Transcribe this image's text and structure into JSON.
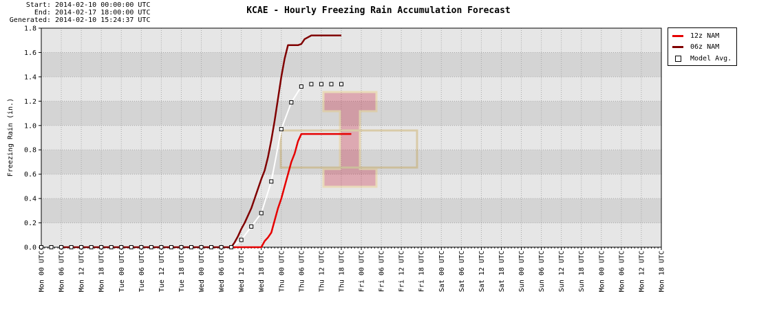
{
  "meta": {
    "start_key": "Start:",
    "start_val": "2014-02-10 00:00:00 UTC",
    "end_key": "End:",
    "end_val": "2014-02-17 18:00:00 UTC",
    "gen_key": "Generated:",
    "gen_val": "2014-02-10 15:24:37 UTC"
  },
  "colors": {
    "nam12z": "#e60000",
    "nam06z": "#800000",
    "avg": "#ffffff",
    "band_light": "#e6e6e6",
    "band_dark": "#d4d4d4"
  },
  "chart_data": {
    "type": "line",
    "title": "KCAE - Hourly Freezing Rain Accumulation Forecast",
    "ylabel": "Freezing Rain (in.)",
    "xlabel": "",
    "ylim": [
      0,
      1.8
    ],
    "yticks": [
      "0.0",
      "0.2",
      "0.4",
      "0.6",
      "0.8",
      "1.0",
      "1.2",
      "1.4",
      "1.6",
      "1.8"
    ],
    "xlim_hours": [
      0,
      186
    ],
    "xticks": [
      "Mon 00 UTC",
      "Mon 06 UTC",
      "Mon 12 UTC",
      "Mon 18 UTC",
      "Tue 00 UTC",
      "Tue 06 UTC",
      "Tue 12 UTC",
      "Tue 18 UTC",
      "Wed 00 UTC",
      "Wed 06 UTC",
      "Wed 12 UTC",
      "Wed 18 UTC",
      "Thu 00 UTC",
      "Thu 06 UTC",
      "Thu 12 UTC",
      "Thu 18 UTC",
      "Fri 00 UTC",
      "Fri 06 UTC",
      "Fri 12 UTC",
      "Fri 18 UTC",
      "Sat 00 UTC",
      "Sat 06 UTC",
      "Sat 12 UTC",
      "Sat 18 UTC",
      "Sun 00 UTC",
      "Sun 06 UTC",
      "Sun 12 UTC",
      "Sun 18 UTC",
      "Mon 00 UTC",
      "Mon 06 UTC",
      "Mon 12 UTC",
      "Mon 18 UTC"
    ],
    "grid": true,
    "legend_position": "outside-right-top",
    "series": [
      {
        "name": "12z NAM",
        "style": "line",
        "color": "#e60000",
        "points": [
          [
            57,
            0.0
          ],
          [
            66,
            0.0
          ],
          [
            67,
            0.05
          ],
          [
            68,
            0.08
          ],
          [
            69,
            0.12
          ],
          [
            70,
            0.22
          ],
          [
            71,
            0.32
          ],
          [
            72,
            0.4
          ],
          [
            73,
            0.5
          ],
          [
            74,
            0.6
          ],
          [
            75,
            0.7
          ],
          [
            76,
            0.77
          ],
          [
            77,
            0.87
          ],
          [
            78,
            0.93
          ],
          [
            79,
            0.93
          ],
          [
            80,
            0.93
          ],
          [
            81,
            0.93
          ],
          [
            84,
            0.93
          ],
          [
            87,
            0.93
          ],
          [
            90,
            0.93
          ],
          [
            93,
            0.93
          ]
        ]
      },
      {
        "name": "06z NAM",
        "style": "line",
        "color": "#800000",
        "points": [
          [
            6,
            0.0
          ],
          [
            12,
            0.0
          ],
          [
            57,
            0.0
          ],
          [
            58,
            0.04
          ],
          [
            59,
            0.09
          ],
          [
            60,
            0.15
          ],
          [
            61,
            0.2
          ],
          [
            62,
            0.26
          ],
          [
            63,
            0.32
          ],
          [
            64,
            0.4
          ],
          [
            65,
            0.48
          ],
          [
            66,
            0.56
          ],
          [
            67,
            0.63
          ],
          [
            68,
            0.74
          ],
          [
            69,
            0.88
          ],
          [
            70,
            1.04
          ],
          [
            71,
            1.22
          ],
          [
            72,
            1.4
          ],
          [
            73,
            1.55
          ],
          [
            74,
            1.66
          ],
          [
            75,
            1.66
          ],
          [
            76,
            1.66
          ],
          [
            77,
            1.66
          ],
          [
            78,
            1.67
          ],
          [
            79,
            1.71
          ],
          [
            81,
            1.74
          ],
          [
            84,
            1.74
          ],
          [
            87,
            1.74
          ],
          [
            90,
            1.74
          ]
        ]
      },
      {
        "name": "Model Avg.",
        "style": "markers",
        "color": "#ffffff",
        "points": [
          [
            0,
            0.0
          ],
          [
            3,
            0.0
          ],
          [
            6,
            0.0
          ],
          [
            9,
            0.0
          ],
          [
            12,
            0.0
          ],
          [
            15,
            0.0
          ],
          [
            18,
            0.0
          ],
          [
            21,
            0.0
          ],
          [
            24,
            0.0
          ],
          [
            27,
            0.0
          ],
          [
            30,
            0.0
          ],
          [
            33,
            0.0
          ],
          [
            36,
            0.0
          ],
          [
            39,
            0.0
          ],
          [
            42,
            0.0
          ],
          [
            45,
            0.0
          ],
          [
            48,
            0.0
          ],
          [
            51,
            0.0
          ],
          [
            54,
            0.0
          ],
          [
            57,
            0.0
          ],
          [
            60,
            0.06
          ],
          [
            63,
            0.17
          ],
          [
            66,
            0.28
          ],
          [
            69,
            0.54
          ],
          [
            72,
            0.97
          ],
          [
            75,
            1.19
          ],
          [
            78,
            1.32
          ],
          [
            81,
            1.34
          ],
          [
            84,
            1.34
          ],
          [
            87,
            1.34
          ],
          [
            90,
            1.34
          ]
        ]
      }
    ]
  }
}
